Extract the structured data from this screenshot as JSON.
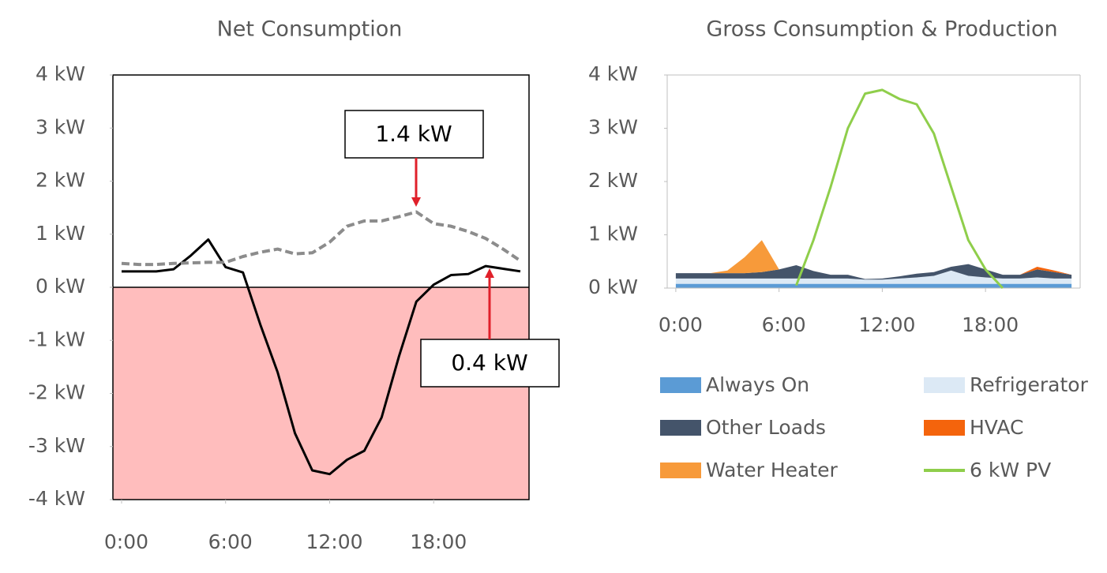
{
  "chart_data": [
    {
      "type": "line",
      "title": "Net Consumption",
      "x": [
        0,
        1,
        2,
        3,
        4,
        5,
        6,
        7,
        8,
        9,
        10,
        11,
        12,
        13,
        14,
        15,
        16,
        17,
        18,
        19,
        20,
        21,
        22,
        23
      ],
      "xlim": [
        -0.5,
        23.5
      ],
      "xticks": [
        {
          "value": 0,
          "label": "0:00"
        },
        {
          "value": 6,
          "label": "6:00"
        },
        {
          "value": 12,
          "label": "12:00"
        },
        {
          "value": 18,
          "label": "18:00"
        }
      ],
      "ylim": [
        -4,
        4
      ],
      "yticks": [
        {
          "value": 4,
          "label": "4 kW"
        },
        {
          "value": 3,
          "label": "3 kW"
        },
        {
          "value": 2,
          "label": "2 kW"
        },
        {
          "value": 1,
          "label": "1 kW"
        },
        {
          "value": 0,
          "label": "0 kW"
        },
        {
          "value": -1,
          "label": "-1 kW"
        },
        {
          "value": -2,
          "label": "-2 kW"
        },
        {
          "value": -3,
          "label": "-3 kW"
        },
        {
          "value": -4,
          "label": "-4 kW"
        }
      ],
      "series": [
        {
          "color": "#000000",
          "values": [
            0.3,
            0.3,
            0.3,
            0.34,
            0.6,
            0.9,
            0.38,
            0.28,
            -0.7,
            -1.6,
            -2.75,
            -3.45,
            -3.52,
            -3.25,
            -3.08,
            -2.45,
            -1.3,
            -0.27,
            0.05,
            0.23,
            0.25,
            0.4,
            0.35,
            0.3
          ]
        },
        {
          "color": "#8c8c8c",
          "dash": true,
          "values": [
            0.45,
            0.43,
            0.43,
            0.45,
            0.46,
            0.47,
            0.47,
            0.58,
            0.66,
            0.72,
            0.63,
            0.65,
            0.85,
            1.15,
            1.25,
            1.25,
            1.33,
            1.42,
            1.2,
            1.15,
            1.05,
            0.92,
            0.72,
            0.5
          ]
        }
      ],
      "annotations": [
        {
          "text": "1.4 kW"
        },
        {
          "text": "0.4 kW"
        }
      ]
    },
    {
      "type": "area",
      "title": "Gross Consumption & Production",
      "x": [
        0,
        1,
        2,
        3,
        4,
        5,
        6,
        7,
        8,
        9,
        10,
        11,
        12,
        13,
        14,
        15,
        16,
        17,
        18,
        19,
        20,
        21,
        22,
        23
      ],
      "xlim": [
        -0.5,
        23.5
      ],
      "xticks": [
        {
          "value": 0,
          "label": "0:00"
        },
        {
          "value": 6,
          "label": "6:00"
        },
        {
          "value": 12,
          "label": "12:00"
        },
        {
          "value": 18,
          "label": "18:00"
        }
      ],
      "ylim": [
        0,
        4
      ],
      "yticks": [
        {
          "value": 4,
          "label": "4 kW"
        },
        {
          "value": 3,
          "label": "3 kW"
        },
        {
          "value": 2,
          "label": "2 kW"
        },
        {
          "value": 1,
          "label": "1 kW"
        },
        {
          "value": 0,
          "label": "0 kW"
        }
      ],
      "series": [
        {
          "name": "Always On",
          "color": "#5b9bd5",
          "values": [
            0.08,
            0.08,
            0.08,
            0.08,
            0.08,
            0.08,
            0.08,
            0.08,
            0.08,
            0.08,
            0.08,
            0.08,
            0.08,
            0.08,
            0.08,
            0.08,
            0.08,
            0.08,
            0.08,
            0.08,
            0.08,
            0.08,
            0.08,
            0.08
          ]
        },
        {
          "name": "Refrigerator",
          "color": "#dce9f5",
          "values": [
            0.1,
            0.1,
            0.1,
            0.1,
            0.1,
            0.1,
            0.1,
            0.1,
            0.1,
            0.1,
            0.1,
            0.08,
            0.08,
            0.1,
            0.12,
            0.15,
            0.25,
            0.15,
            0.12,
            0.1,
            0.1,
            0.12,
            0.1,
            0.1
          ]
        },
        {
          "name": "Other Loads",
          "color": "#44546a",
          "values": [
            0.1,
            0.1,
            0.1,
            0.1,
            0.1,
            0.12,
            0.17,
            0.25,
            0.14,
            0.07,
            0.07,
            0.01,
            0.02,
            0.04,
            0.07,
            0.07,
            0.07,
            0.22,
            0.15,
            0.07,
            0.07,
            0.15,
            0.12,
            0.07
          ]
        },
        {
          "name": "HVAC",
          "color": "#f4640c",
          "values": [
            0,
            0,
            0,
            0,
            0,
            0,
            0,
            0,
            0,
            0,
            0,
            0,
            0,
            0,
            0,
            0,
            0,
            0,
            0,
            0,
            0,
            0.05,
            0.03,
            0
          ]
        },
        {
          "name": "Water Heater",
          "color": "#f79a3a",
          "values": [
            0,
            0,
            0,
            0.05,
            0.3,
            0.6,
            0,
            0,
            0,
            0,
            0,
            0,
            0,
            0,
            0,
            0,
            0,
            0,
            0,
            0,
            0,
            0,
            0,
            0
          ]
        },
        {
          "name": "6 kW PV",
          "type": "line",
          "color": "#8fce4b",
          "values": [
            null,
            null,
            null,
            null,
            null,
            null,
            null,
            0.05,
            0.9,
            1.9,
            3.0,
            3.65,
            3.72,
            3.55,
            3.45,
            2.9,
            1.9,
            0.9,
            0.35,
            0,
            null,
            null,
            null,
            null
          ]
        }
      ]
    }
  ]
}
